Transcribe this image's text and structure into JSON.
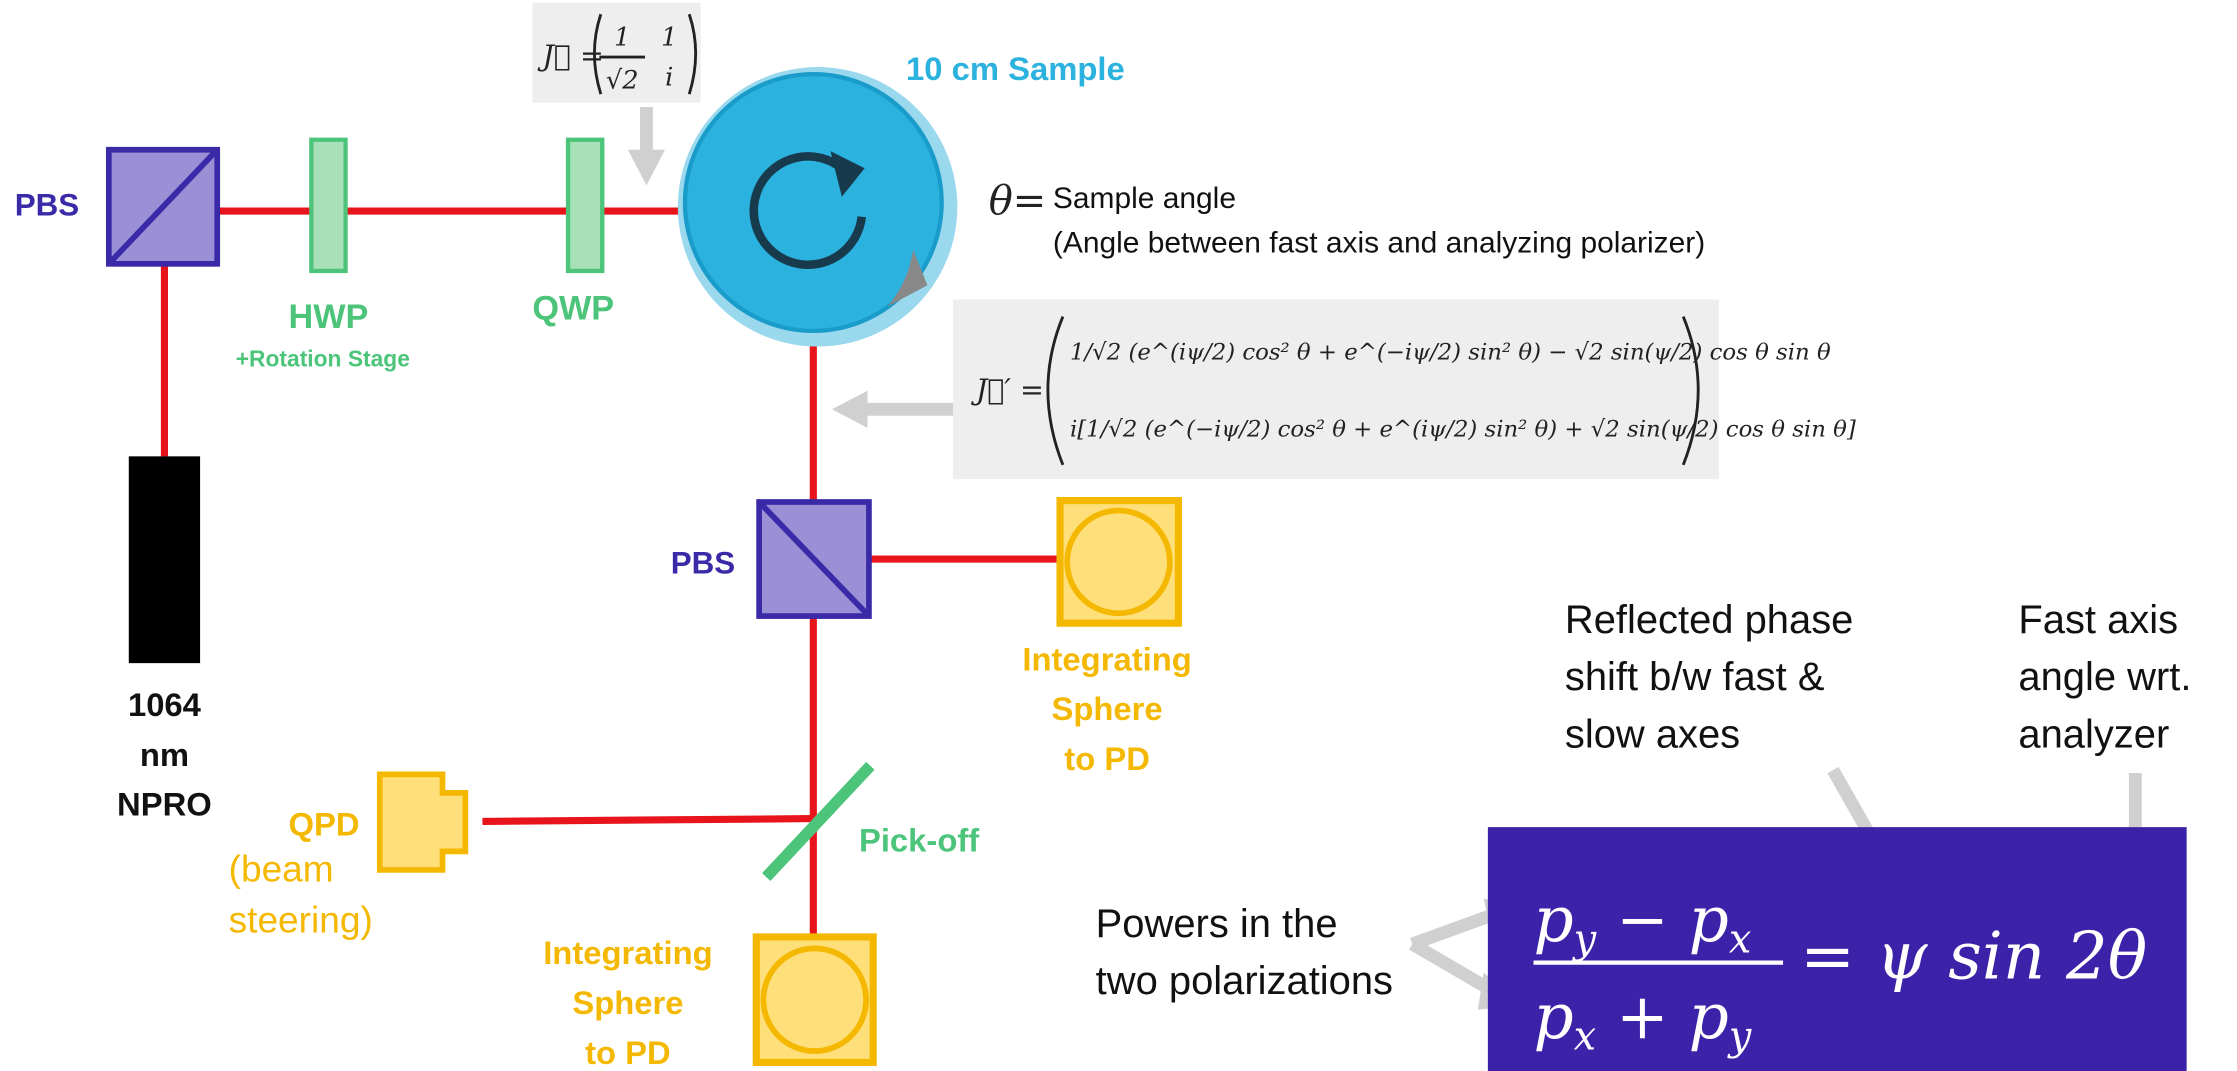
{
  "labels": {
    "pbs_top": "PBS",
    "hwp": "HWP",
    "rotation_stage": "+Rotation Stage",
    "qwp": "QWP",
    "sample": "10 cm Sample",
    "laser": [
      "1064",
      "nm",
      "NPRO"
    ],
    "pbs_mid": "PBS",
    "sphere_right": [
      "Integrating",
      "Sphere",
      "to PD"
    ],
    "sphere_bottom": [
      "Integrating",
      "Sphere",
      "to PD"
    ],
    "qpd": "QPD",
    "qpd_note": [
      "(beam",
      "steering)"
    ],
    "pickoff": "Pick-off"
  },
  "theta_definition": {
    "symbol": "θ=",
    "text": "Sample angle",
    "detail": "(Angle between fast axis and analyzing polarizer)"
  },
  "input_jones": {
    "lhs": "J⃗ =",
    "numerator": "1",
    "denominator": "√2",
    "vector": [
      "1",
      "i"
    ]
  },
  "output_jones": {
    "lhs": "J⃗′ =",
    "rows": [
      "1/√2 (e^(iψ/2) cos² θ + e^(−iψ/2) sin² θ) − √2 sin(ψ/2) cos θ sin θ",
      "i[1/√2 (e^(−iψ/2) cos² θ + e^(iψ/2) sin² θ) + √2 sin(ψ/2) cos θ sin θ]"
    ]
  },
  "annotations": {
    "phase": [
      "Reflected phase",
      "shift b/w fast &",
      "slow axes"
    ],
    "angle": [
      "Fast axis",
      "angle wrt.",
      "analyzer"
    ],
    "powers": [
      "Powers in the",
      "two polarizations"
    ]
  },
  "main_equation": {
    "numerator": [
      "p",
      "y",
      " − p",
      "x"
    ],
    "denominator": [
      "p",
      "x",
      " + p",
      "y"
    ],
    "rhs": "= ψ sin 2θ"
  }
}
